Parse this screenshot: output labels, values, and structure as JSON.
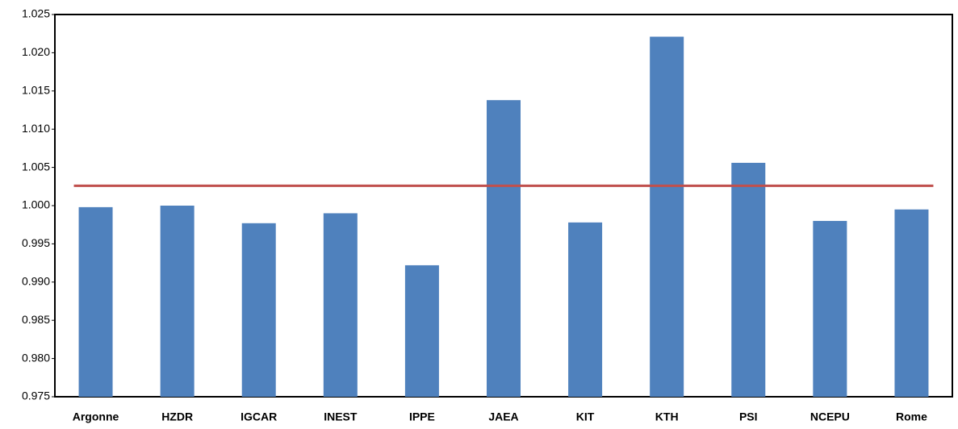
{
  "chart_data": {
    "type": "bar",
    "categories": [
      "Argonne",
      "HZDR",
      "IGCAR",
      "INEST",
      "IPPE",
      "JAEA",
      "KIT",
      "KTH",
      "PSI",
      "NCEPU",
      "Rome"
    ],
    "values": [
      0.9998,
      1.0,
      0.9977,
      0.999,
      0.9922,
      1.0138,
      0.9978,
      1.0221,
      1.0056,
      0.998,
      0.9995
    ],
    "color": "#4f81bd",
    "reference_line": 1.0026,
    "reference_color": "#c0504d",
    "ylim": [
      0.975,
      1.025
    ],
    "yticks": [
      0.975,
      {
        "value": 0.98,
        "label": "0.980"
      },
      0.985,
      {
        "value": 0.99,
        "label": "0.990"
      },
      0.995,
      {
        "value": 1.0,
        "label": "1.000"
      },
      1.005,
      {
        "value": 1.01,
        "label": "1.010"
      },
      1.015,
      {
        "value": 1.02,
        "label": "1.020"
      },
      1.025
    ],
    "grid": false
  }
}
